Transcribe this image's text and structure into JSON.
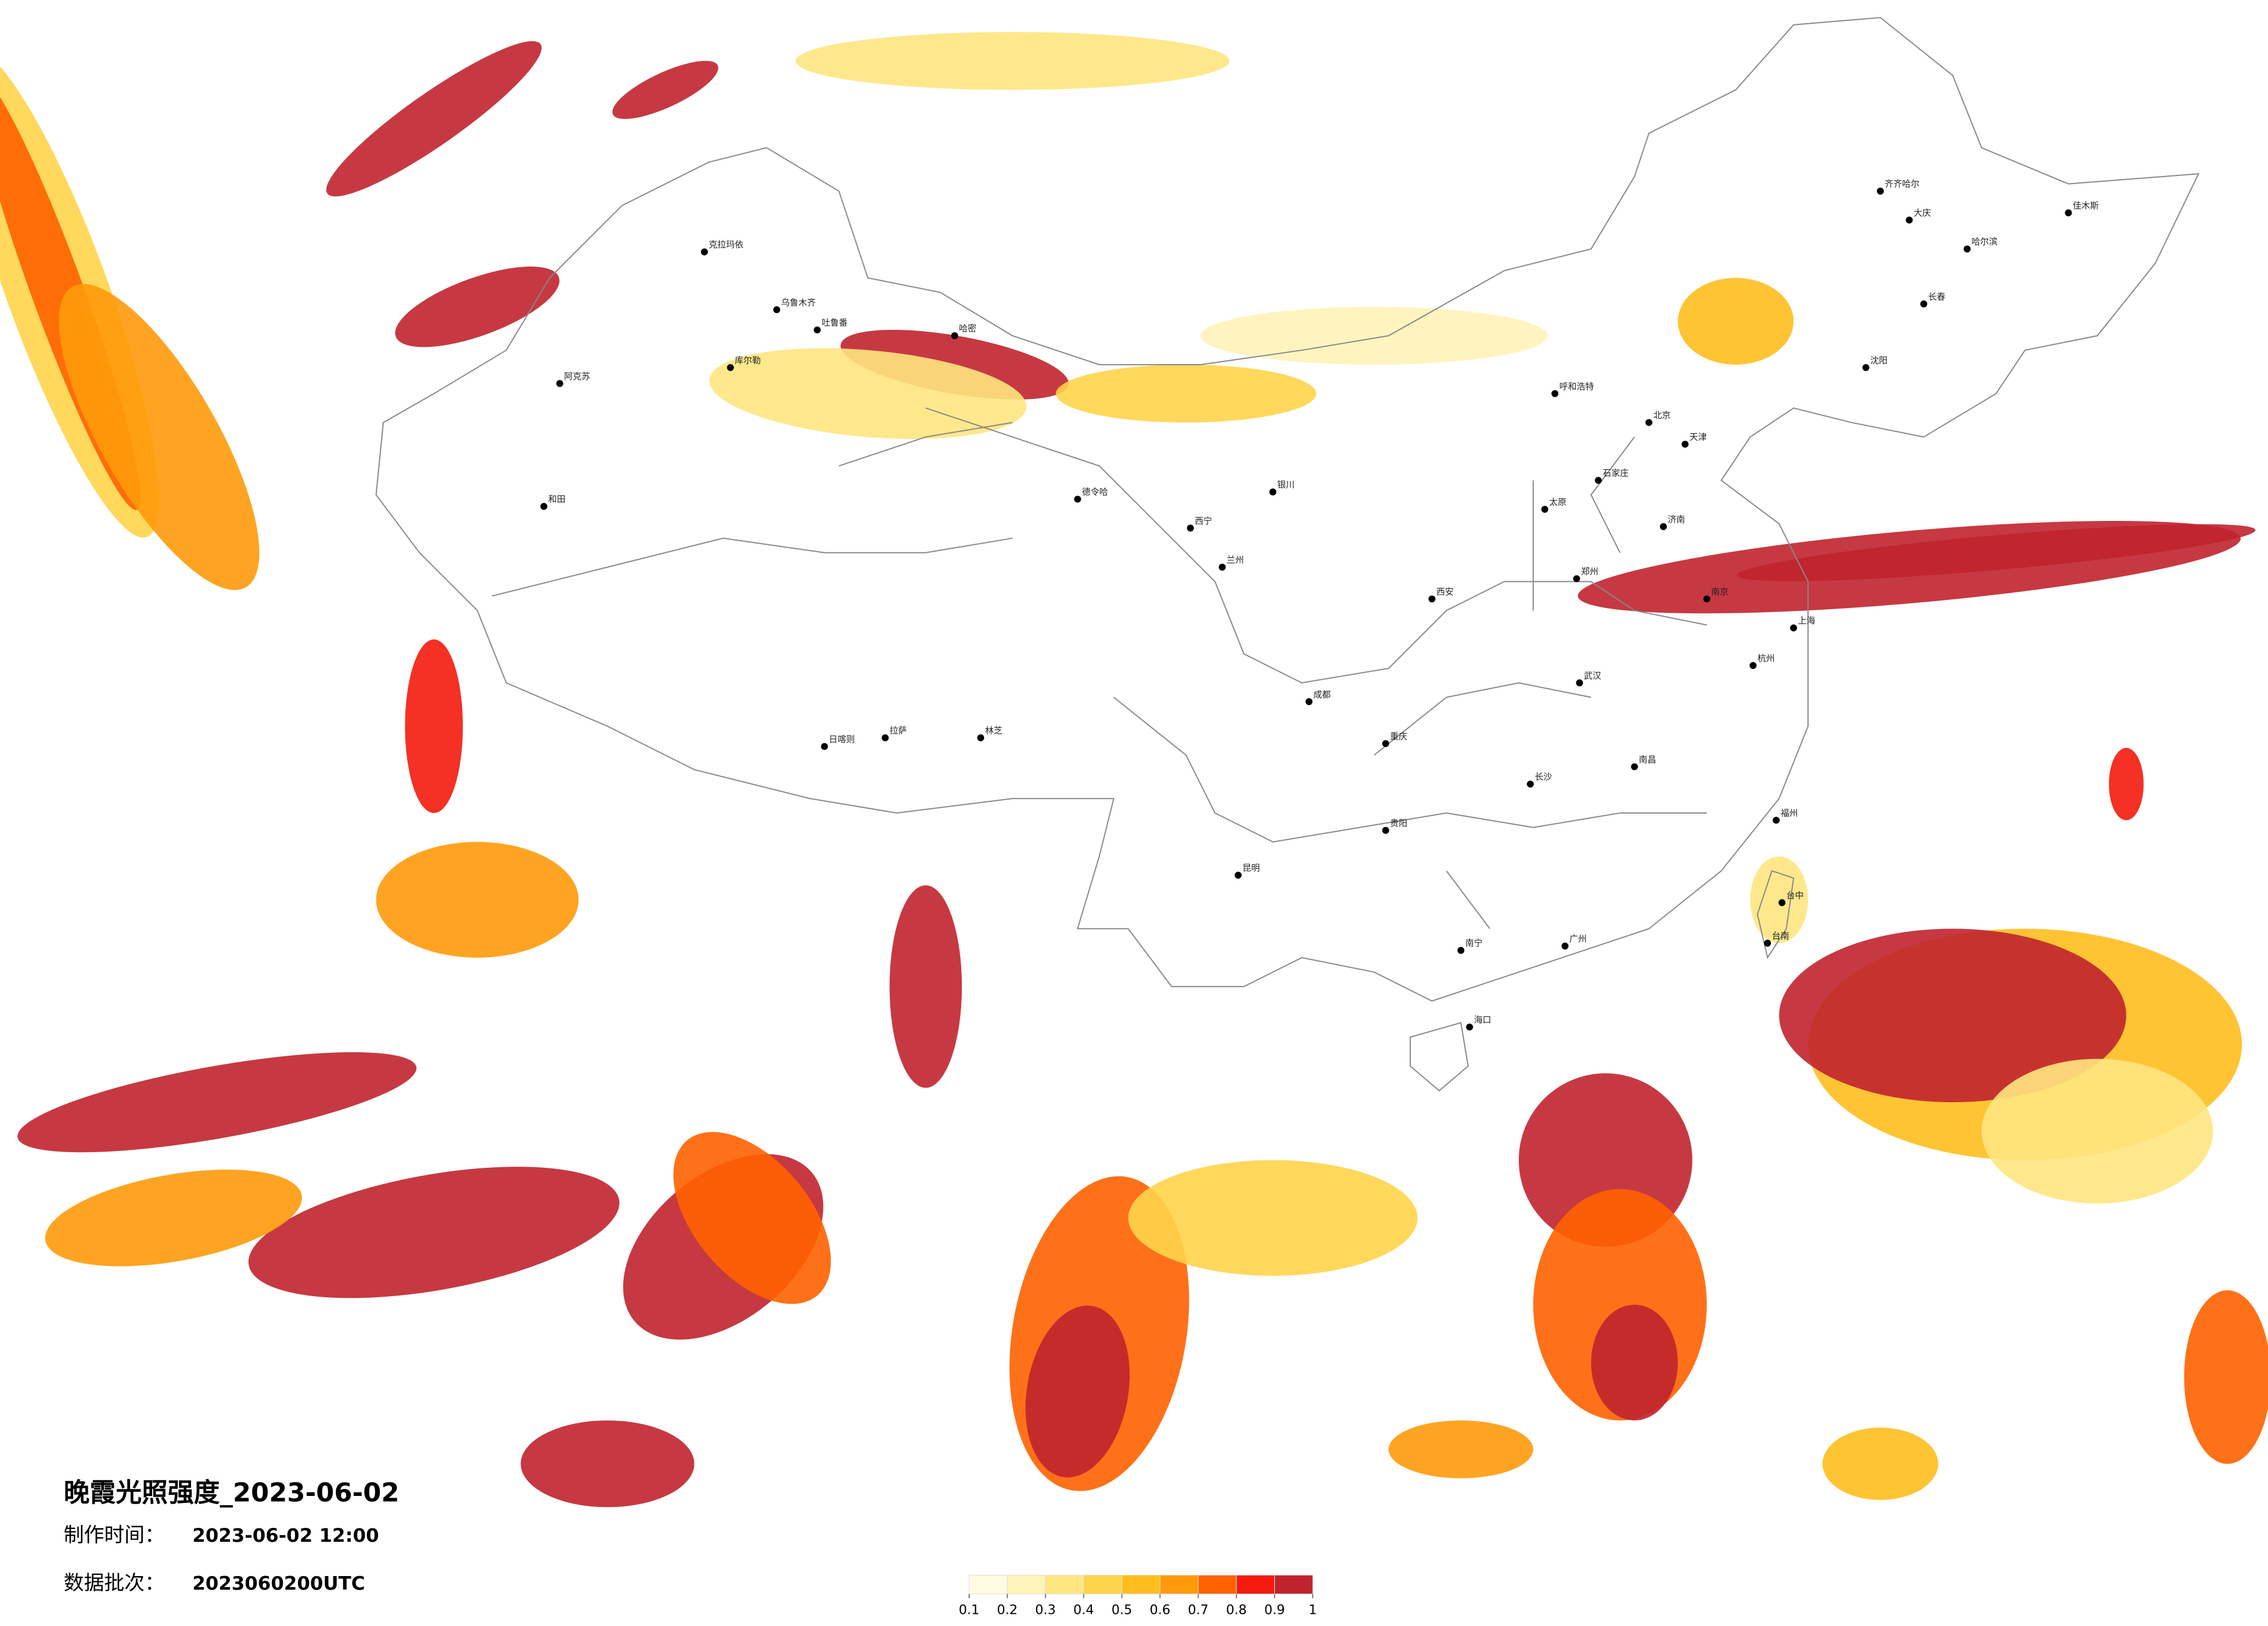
{
  "title": "晚霞光照强度_2023-06-02",
  "info": [
    {
      "label": "制作时间：",
      "value": "2023-06-02 12:00"
    },
    {
      "label": "数据批次：",
      "value": "2023060200UTC"
    }
  ],
  "legend": {
    "colors": [
      "#fffbe3",
      "#fff3b8",
      "#ffe680",
      "#ffd44a",
      "#ffbe1e",
      "#ff9a0a",
      "#ff6200",
      "#f41a0c",
      "#c0232e"
    ],
    "ticks": [
      0.1,
      0.2,
      0.3,
      0.4,
      0.5,
      0.6,
      0.7,
      0.8,
      0.9,
      1
    ]
  },
  "cities": [
    "克拉玛依",
    "乌鲁木齐",
    "吐鲁番",
    "哈密",
    "库尔勒",
    "阿克苏",
    "和田",
    "德令哈",
    "拉萨",
    "日喀则",
    "林芝",
    "西宁",
    "兰州",
    "银川",
    "呼和浩特",
    "北京",
    "天津",
    "石家庄",
    "太原",
    "济南",
    "郑州",
    "西安",
    "成都",
    "重庆",
    "武汉",
    "南京",
    "上海",
    "杭州",
    "长沙",
    "南昌",
    "福州",
    "广州",
    "南宁",
    "昆明",
    "贵阳",
    "台中",
    "台南",
    "海口",
    "哈尔滨",
    "长春",
    "沈阳",
    "齐齐哈尔",
    "大庆",
    "佳木斯"
  ]
}
